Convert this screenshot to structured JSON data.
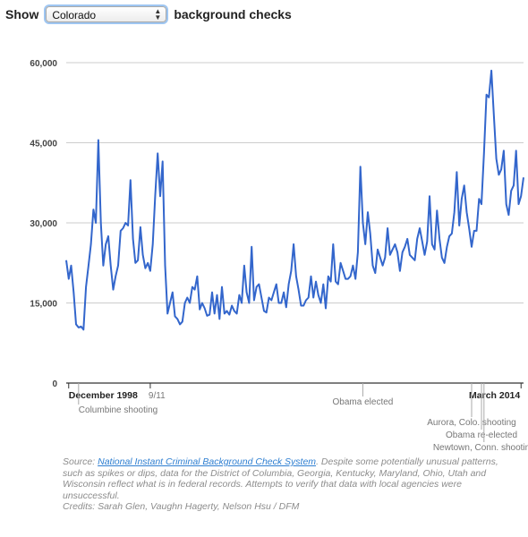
{
  "controls": {
    "show_label": "Show",
    "state_value": "Colorado",
    "suffix_label": "background checks"
  },
  "chart_data": {
    "type": "line",
    "x": [
      "1998-11",
      "1998-12",
      "1999-01",
      "1999-02",
      "1999-03",
      "1999-04",
      "1999-05",
      "1999-06",
      "1999-07",
      "1999-08",
      "1999-09",
      "1999-10",
      "1999-11",
      "1999-12",
      "2000-01",
      "2000-02",
      "2000-03",
      "2000-04",
      "2000-05",
      "2000-06",
      "2000-07",
      "2000-08",
      "2000-09",
      "2000-10",
      "2000-11",
      "2000-12",
      "2001-01",
      "2001-02",
      "2001-03",
      "2001-04",
      "2001-05",
      "2001-06",
      "2001-07",
      "2001-08",
      "2001-09",
      "2001-10",
      "2001-11",
      "2001-12",
      "2002-01",
      "2002-02",
      "2002-03",
      "2002-04",
      "2002-05",
      "2002-06",
      "2002-07",
      "2002-08",
      "2002-09",
      "2002-10",
      "2002-11",
      "2002-12",
      "2003-01",
      "2003-02",
      "2003-03",
      "2003-04",
      "2003-05",
      "2003-06",
      "2003-07",
      "2003-08",
      "2003-09",
      "2003-10",
      "2003-11",
      "2003-12",
      "2004-01",
      "2004-02",
      "2004-03",
      "2004-04",
      "2004-05",
      "2004-06",
      "2004-07",
      "2004-08",
      "2004-09",
      "2004-10",
      "2004-11",
      "2004-12",
      "2005-01",
      "2005-02",
      "2005-03",
      "2005-04",
      "2005-05",
      "2005-06",
      "2005-07",
      "2005-08",
      "2005-09",
      "2005-10",
      "2005-11",
      "2005-12",
      "2006-01",
      "2006-02",
      "2006-03",
      "2006-04",
      "2006-05",
      "2006-06",
      "2006-07",
      "2006-08",
      "2006-09",
      "2006-10",
      "2006-11",
      "2006-12",
      "2007-01",
      "2007-02",
      "2007-03",
      "2007-04",
      "2007-05",
      "2007-06",
      "2007-07",
      "2007-08",
      "2007-09",
      "2007-10",
      "2007-11",
      "2007-12",
      "2008-01",
      "2008-02",
      "2008-03",
      "2008-04",
      "2008-05",
      "2008-06",
      "2008-07",
      "2008-08",
      "2008-09",
      "2008-10",
      "2008-11",
      "2008-12",
      "2009-01",
      "2009-02",
      "2009-03",
      "2009-04",
      "2009-05",
      "2009-06",
      "2009-07",
      "2009-08",
      "2009-09",
      "2009-10",
      "2009-11",
      "2009-12",
      "2010-01",
      "2010-02",
      "2010-03",
      "2010-04",
      "2010-05",
      "2010-06",
      "2010-07",
      "2010-08",
      "2010-09",
      "2010-10",
      "2010-11",
      "2010-12",
      "2011-01",
      "2011-02",
      "2011-03",
      "2011-04",
      "2011-05",
      "2011-06",
      "2011-07",
      "2011-08",
      "2011-09",
      "2011-10",
      "2011-11",
      "2011-12",
      "2012-01",
      "2012-02",
      "2012-03",
      "2012-04",
      "2012-05",
      "2012-06",
      "2012-07",
      "2012-08",
      "2012-09",
      "2012-10",
      "2012-11",
      "2012-12",
      "2013-01",
      "2013-02",
      "2013-03",
      "2013-04",
      "2013-05",
      "2013-06",
      "2013-07",
      "2013-08",
      "2013-09",
      "2013-10",
      "2013-11",
      "2013-12",
      "2014-01",
      "2014-02",
      "2014-03",
      "2014-04"
    ],
    "series": [
      {
        "values": [
          23000,
          19500,
          22000,
          17000,
          11000,
          10400,
          10600,
          10000,
          18000,
          22000,
          26000,
          32500,
          30000,
          45500,
          30000,
          22000,
          26000,
          27500,
          22000,
          17500,
          20000,
          22000,
          28500,
          29000,
          30000,
          29500,
          38000,
          27000,
          22500,
          23000,
          29200,
          24000,
          21500,
          22500,
          21000,
          26000,
          35000,
          43000,
          35000,
          41500,
          22000,
          13000,
          15000,
          17000,
          12500,
          12000,
          11000,
          11500,
          15000,
          16000,
          15000,
          18000,
          17500,
          20000,
          13800,
          15000,
          14000,
          12600,
          12800,
          17000,
          13000,
          16500,
          12000,
          18000,
          13000,
          13500,
          12800,
          14500,
          13500,
          13000,
          16500,
          15000,
          22000,
          17000,
          15000,
          25500,
          15500,
          18000,
          18500,
          16000,
          13500,
          13200,
          16000,
          15500,
          17000,
          18500,
          15000,
          15000,
          17000,
          14200,
          18500,
          21000,
          26000,
          20000,
          17500,
          14500,
          14500,
          15500,
          16000,
          20000,
          16000,
          19000,
          16500,
          15000,
          18500,
          14000,
          20000,
          19000,
          26000,
          19000,
          18500,
          22500,
          21000,
          19500,
          19500,
          20000,
          22000,
          19500,
          24500,
          40500,
          30000,
          26000,
          32000,
          28000,
          22000,
          20600,
          25000,
          23500,
          22000,
          23500,
          29000,
          24000,
          25000,
          26000,
          24500,
          21000,
          24500,
          25500,
          27000,
          24000,
          23500,
          23000,
          27000,
          29000,
          26500,
          24000,
          26500,
          35000,
          26000,
          25000,
          32300,
          27000,
          23500,
          22500,
          25500,
          27500,
          28000,
          32000,
          39500,
          29500,
          34500,
          37000,
          32000,
          29000,
          25500,
          28500,
          28500,
          34500,
          33500,
          43000,
          54000,
          53500,
          58500,
          50000,
          42000,
          39000,
          40000,
          43500,
          33500,
          31500,
          36000,
          37000,
          43500,
          33500,
          35000,
          38500
        ]
      }
    ],
    "y_ticks": [
      "0",
      "15,000",
      "30,000",
      "45,000",
      "60,000"
    ],
    "ylim": [
      0,
      60000
    ],
    "x_ticks": [
      "December 1998",
      "9/11",
      "March 2014"
    ],
    "annotations": [
      {
        "date": "1999-04",
        "text": "Columbine shooting"
      },
      {
        "date": "2008-11",
        "text": "Obama elected"
      },
      {
        "date": "2012-07",
        "text": "Aurora, Colo. shooting"
      },
      {
        "date": "2012-11",
        "text": "Obama re-elected"
      },
      {
        "date": "2012-12",
        "text": "Newtown, Conn. shooting"
      }
    ],
    "grid": true,
    "line_color": "#3366cc"
  },
  "footnote": {
    "source_prefix": "Source: ",
    "source_link": "National Instant Criminal Background Check System",
    "source_rest": ". Despite some potentially unusual patterns, such as spikes or dips, data for the District of Columbia, Georgia, Kentucky, Maryland, Ohio, Utah and Wisconsin reflect what is in federal records. Attempts to verify that data with local agencies were unsuccessful.",
    "credits": "Credits: Sarah Glen, Vaughn Hagerty, Nelson Hsu / DFM"
  }
}
